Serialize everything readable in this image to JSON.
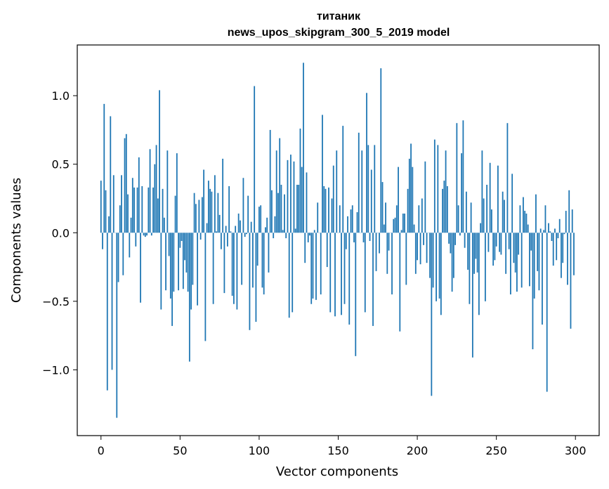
{
  "chart_data": {
    "type": "bar",
    "title": "титаник",
    "subtitle": "news_upos_skipgram_300_5_2019 model",
    "xlabel": "Vector components",
    "ylabel": "Components values",
    "xlim": [
      -15,
      315
    ],
    "ylim": [
      -1.48,
      1.37
    ],
    "x_ticks": [
      0,
      50,
      100,
      150,
      200,
      250,
      300
    ],
    "x_tick_labels": [
      "0",
      "50",
      "100",
      "150",
      "200",
      "250",
      "300"
    ],
    "y_ticks": [
      -1.0,
      -0.5,
      0.0,
      0.5,
      1.0
    ],
    "y_tick_labels": [
      "−1.0",
      "−0.5",
      "0.0",
      "0.5",
      "1.0"
    ],
    "bar_color": "#1f77b4",
    "grid": false,
    "legend": "none",
    "values": [
      0.38,
      -0.12,
      0.94,
      0.31,
      -1.15,
      0.12,
      0.85,
      -1.0,
      0.42,
      0.0,
      -1.35,
      -0.36,
      0.2,
      0.42,
      -0.31,
      0.69,
      0.72,
      0.28,
      -0.18,
      0.11,
      0.4,
      0.33,
      -0.1,
      0.33,
      0.55,
      -0.51,
      0.34,
      -0.02,
      -0.03,
      -0.02,
      0.33,
      0.61,
      -0.02,
      0.33,
      0.5,
      0.64,
      0.25,
      1.04,
      -0.56,
      0.32,
      0.11,
      -0.42,
      0.6,
      -0.17,
      -0.48,
      -0.68,
      -0.43,
      0.27,
      0.58,
      -0.42,
      -0.11,
      -0.06,
      -0.41,
      -0.2,
      -0.29,
      -0.43,
      -0.94,
      -0.56,
      -0.38,
      0.29,
      0.21,
      -0.53,
      0.24,
      -0.05,
      0.26,
      0.46,
      -0.79,
      0.07,
      0.38,
      0.32,
      0.3,
      -0.52,
      0.42,
      0.01,
      0.29,
      0.13,
      -0.12,
      0.54,
      -0.44,
      0.05,
      -0.1,
      0.34,
      0.01,
      -0.46,
      -0.52,
      0.05,
      -0.56,
      0.14,
      0.09,
      -0.38,
      0.4,
      -0.03,
      -0.01,
      0.27,
      -0.71,
      0.08,
      -0.4,
      1.07,
      -0.65,
      -0.24,
      0.19,
      0.2,
      -0.4,
      -0.45,
      0.04,
      0.11,
      -0.29,
      0.75,
      0.31,
      -0.04,
      0.12,
      0.6,
      0.29,
      0.69,
      0.35,
      0.02,
      0.28,
      -0.04,
      0.53,
      -0.62,
      0.57,
      -0.58,
      0.52,
      0.03,
      0.35,
      0.35,
      0.76,
      0.48,
      1.24,
      -0.22,
      0.44,
      -0.07,
      -0.02,
      -0.52,
      -0.48,
      0.02,
      -0.49,
      0.22,
      0.0,
      -0.45,
      0.86,
      0.34,
      0.32,
      -0.25,
      0.33,
      -0.58,
      0.25,
      0.49,
      -0.61,
      0.6,
      0.0,
      0.2,
      -0.6,
      0.78,
      -0.52,
      -0.12,
      0.12,
      -0.67,
      0.17,
      0.2,
      -0.07,
      -0.9,
      0.15,
      0.73,
      0.0,
      0.6,
      -0.07,
      -0.58,
      1.02,
      0.64,
      -0.06,
      0.46,
      -0.68,
      0.64,
      -0.28,
      0.0,
      -0.15,
      1.2,
      0.37,
      0.06,
      0.22,
      -0.3,
      -0.13,
      0.0,
      -0.45,
      0.1,
      0.11,
      0.2,
      0.48,
      -0.72,
      0.02,
      0.14,
      0.14,
      -0.38,
      0.32,
      0.54,
      0.65,
      0.48,
      0.06,
      -0.3,
      -0.2,
      0.2,
      -0.23,
      0.25,
      -0.09,
      0.52,
      -0.22,
      0.0,
      -0.33,
      -1.19,
      -0.4,
      0.68,
      -0.5,
      0.64,
      -0.48,
      -0.6,
      0.32,
      0.38,
      0.6,
      0.34,
      -0.08,
      -0.15,
      -0.43,
      -0.33,
      -0.09,
      0.8,
      0.2,
      -0.02,
      0.58,
      0.82,
      -0.11,
      0.3,
      -0.27,
      -0.52,
      0.22,
      -0.91,
      -0.3,
      -0.19,
      -0.29,
      -0.6,
      0.07,
      0.6,
      0.25,
      -0.5,
      0.35,
      -0.14,
      0.51,
      0.17,
      -0.24,
      -0.2,
      -0.1,
      0.49,
      -0.14,
      -0.16,
      0.3,
      0.24,
      -0.3,
      0.8,
      -0.12,
      -0.45,
      0.43,
      -0.22,
      -0.29,
      -0.43,
      -0.16,
      0.2,
      -0.4,
      0.26,
      0.16,
      0.14,
      0.06,
      -0.39,
      -0.13,
      -0.85,
      -0.48,
      0.28,
      -0.28,
      -0.42,
      0.03,
      -0.67,
      0.02,
      0.2,
      -1.16,
      0.07,
      0.01,
      -0.06,
      -0.24,
      0.03,
      -0.2,
      -0.04,
      0.1,
      -0.33,
      -0.22,
      -0.01,
      0.16,
      -0.38,
      0.31,
      -0.7,
      0.17,
      -0.31
    ]
  }
}
